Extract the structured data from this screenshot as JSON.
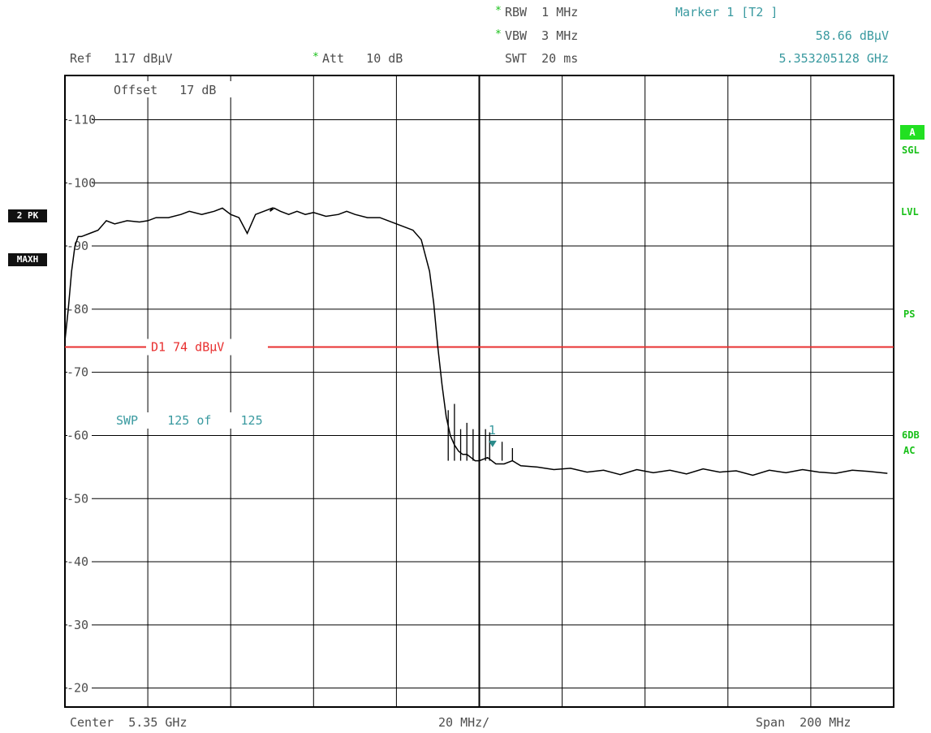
{
  "header": {
    "rbw_star": "*",
    "rbw": "RBW  1 MHz",
    "vbw_star": "*",
    "vbw": "VBW  3 MHz",
    "swt": "SWT  20 ms",
    "ref": "Ref   117 dBµV",
    "att_star": "*",
    "att": "Att   10 dB",
    "marker_title": "Marker 1 [T2 ]",
    "marker_level": "58.66 dBµV",
    "marker_freq": "5.353205128 GHz"
  },
  "annotations": {
    "offset": "Offset   17 dB",
    "swp": "SWP    125 of    125",
    "marker_label": "1"
  },
  "left_badges": {
    "trace": "2 PK",
    "mode": "MAXH"
  },
  "right_labels": {
    "a": "A",
    "sgl": "SGL",
    "lvl": "LVL",
    "ps": "PS",
    "db6": "6DB",
    "ac": "AC"
  },
  "footer": {
    "center": "Center  5.35 GHz",
    "div": "20 MHz/",
    "span": "Span  200 MHz"
  },
  "colors": {
    "grid": "#000000",
    "trace": "#000000",
    "limit": "#e83030",
    "annotation": "#3a9aa0",
    "status": "#19c019"
  },
  "chart_data": {
    "type": "line",
    "title": "",
    "xlabel": "",
    "ylabel": "dBµV",
    "x_unit": "GHz",
    "xlim": [
      5.25,
      5.45
    ],
    "ylim": [
      17,
      117
    ],
    "y_ticks": [
      110,
      100,
      90,
      80,
      70,
      60,
      50,
      40,
      30,
      20
    ],
    "display_line": {
      "name": "D1",
      "label": "D1  74 dBµV",
      "value": 74
    },
    "marker": {
      "name": "1",
      "x": 5.353205128,
      "y": 58.66
    },
    "series": [
      {
        "values_x": [
          5.25,
          5.2508,
          5.2516,
          5.2524,
          5.2532,
          5.254,
          5.256,
          5.258,
          5.26,
          5.262,
          5.265,
          5.268,
          5.27,
          5.272,
          5.275,
          5.278,
          5.28,
          5.283,
          5.286,
          5.288,
          5.29,
          5.292,
          5.294,
          5.296,
          5.298,
          5.3,
          5.2995,
          5.3005,
          5.302,
          5.304,
          5.306,
          5.308,
          5.31,
          5.313,
          5.316,
          5.318,
          5.32,
          5.323,
          5.326,
          5.328,
          5.33,
          5.332,
          5.334,
          5.336,
          5.338,
          5.339,
          5.34,
          5.341,
          5.342,
          5.343,
          5.344,
          5.345,
          5.346,
          5.347,
          5.348,
          5.349,
          5.35,
          5.352,
          5.354,
          5.356,
          5.358,
          5.36,
          5.364,
          5.368,
          5.372,
          5.376,
          5.38,
          5.384,
          5.388,
          5.392,
          5.396,
          5.4,
          5.404,
          5.408,
          5.412,
          5.416,
          5.42,
          5.424,
          5.428,
          5.432,
          5.436,
          5.44,
          5.444,
          5.4485
        ],
        "values_y": [
          75,
          80,
          86,
          90,
          91.5,
          91.5,
          92,
          92.5,
          94,
          93.5,
          94,
          93.8,
          94,
          94.5,
          94.5,
          95,
          95.5,
          95,
          95.5,
          96,
          95,
          94.5,
          92,
          95,
          95.5,
          96,
          95.5,
          96,
          95.5,
          95,
          95.5,
          95,
          95.3,
          94.7,
          95,
          95.5,
          95,
          94.5,
          94.5,
          94,
          93.5,
          93,
          92.5,
          91,
          86,
          81,
          74,
          68,
          63,
          60,
          58.5,
          57.5,
          57,
          57,
          56.5,
          56,
          56,
          56.5,
          55.5,
          55.5,
          56,
          55.2,
          55,
          54.6,
          54.8,
          54.2,
          54.5,
          53.8,
          54.6,
          54.1,
          54.5,
          53.9,
          54.7,
          54.2,
          54.4,
          53.7,
          54.5,
          54.1,
          54.6,
          54.2,
          54,
          54.5,
          54.3,
          54
        ]
      }
    ],
    "spikes": [
      {
        "x": 5.3425,
        "y": 64
      },
      {
        "x": 5.344,
        "y": 65
      },
      {
        "x": 5.3455,
        "y": 61
      },
      {
        "x": 5.347,
        "y": 62
      },
      {
        "x": 5.3485,
        "y": 61
      },
      {
        "x": 5.35,
        "y": 63
      },
      {
        "x": 5.3515,
        "y": 61
      },
      {
        "x": 5.3525,
        "y": 60.5
      },
      {
        "x": 5.3555,
        "y": 59
      },
      {
        "x": 5.358,
        "y": 58
      }
    ]
  }
}
